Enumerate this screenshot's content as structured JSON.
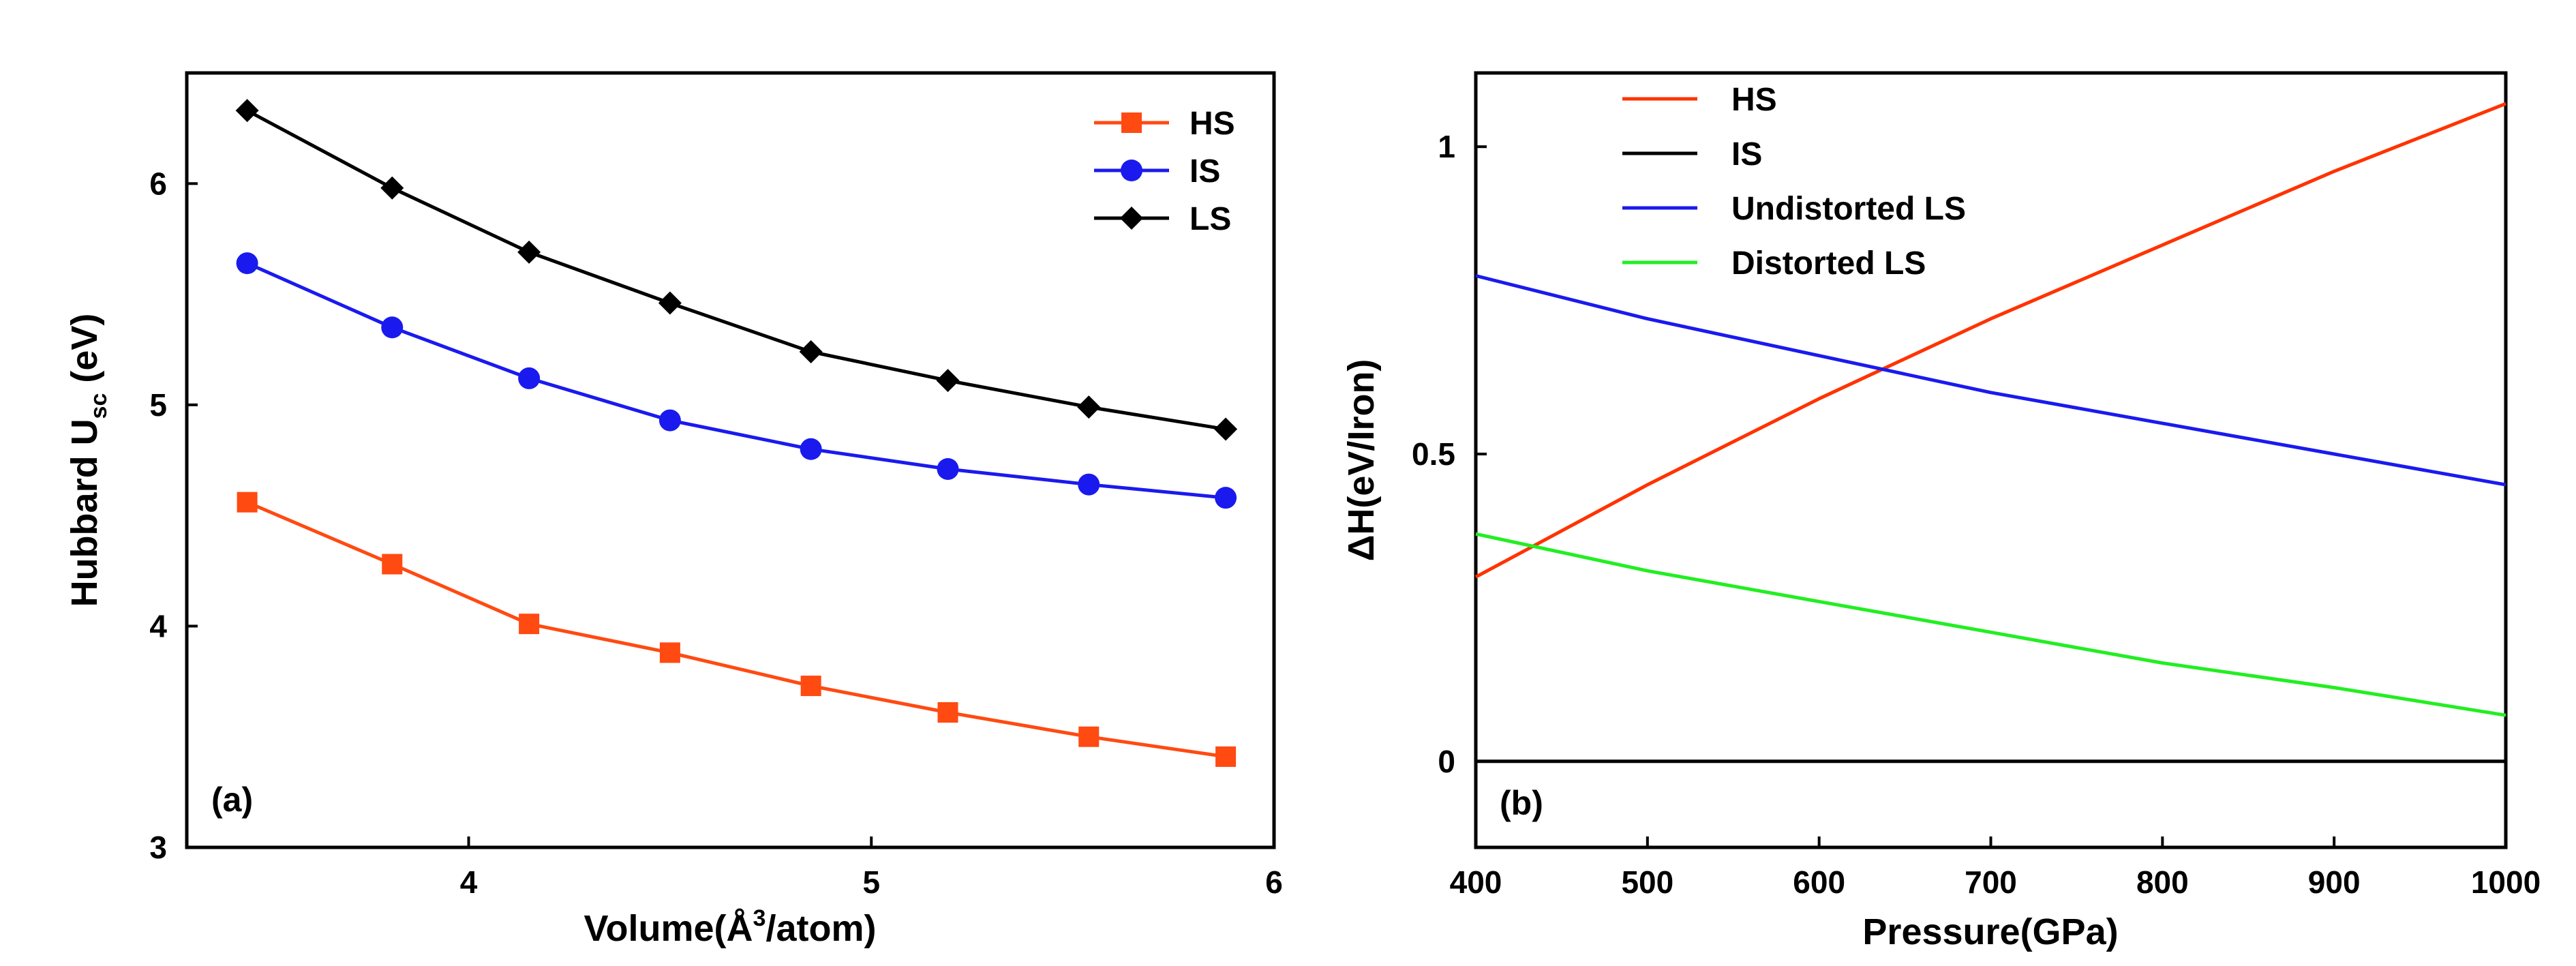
{
  "chart_data": [
    {
      "type": "line",
      "panel_label": "(a)",
      "xlabel_parts": [
        "Volume(Å",
        "3",
        "/atom)"
      ],
      "ylabel_parts": [
        "Hubbard U",
        "sc",
        " (eV)"
      ],
      "xlim": [
        3.3,
        6.0
      ],
      "ylim": [
        3,
        6.5
      ],
      "xticks": [
        4,
        5,
        6
      ],
      "yticks": [
        3,
        4,
        5,
        6
      ],
      "xtick_labels": [
        "4",
        "5",
        "6"
      ],
      "ytick_labels": [
        "3",
        "4",
        "5",
        "6"
      ],
      "legend_position": "top-right",
      "x": [
        3.45,
        3.81,
        4.15,
        4.5,
        4.85,
        5.19,
        5.54,
        5.88
      ],
      "series": [
        {
          "name": "HS",
          "color": "#ff4a12",
          "marker": "square",
          "values": [
            4.56,
            4.28,
            4.01,
            3.88,
            3.73,
            3.61,
            3.5,
            3.41
          ]
        },
        {
          "name": "IS",
          "color": "#1a1aee",
          "marker": "circle",
          "values": [
            5.64,
            5.35,
            5.12,
            4.93,
            4.8,
            4.71,
            4.64,
            4.58
          ]
        },
        {
          "name": "LS",
          "color": "#000000",
          "marker": "diamond",
          "values": [
            6.33,
            5.98,
            5.69,
            5.46,
            5.24,
            5.11,
            4.99,
            4.89
          ]
        }
      ]
    },
    {
      "type": "line",
      "panel_label": "(b)",
      "xlabel": "Pressure(GPa)",
      "ylabel": "ΔH(eV/Iron)",
      "xlim": [
        400,
        1000
      ],
      "ylim": [
        -0.14,
        1.12
      ],
      "xticks": [
        400,
        500,
        600,
        700,
        800,
        900,
        1000
      ],
      "yticks": [
        0,
        0.5,
        1
      ],
      "xtick_labels": [
        "400",
        "500",
        "600",
        "700",
        "800",
        "900",
        "1000"
      ],
      "ytick_labels": [
        "0",
        "0.5",
        "1"
      ],
      "legend_position": "top-left",
      "x": [
        400,
        500,
        600,
        700,
        800,
        900,
        1000
      ],
      "series": [
        {
          "name": "HS",
          "color": "#ff3300",
          "values": [
            0.3,
            0.45,
            0.59,
            0.72,
            0.84,
            0.96,
            1.07
          ]
        },
        {
          "name": "IS",
          "color": "#000000",
          "values": [
            0,
            0,
            0,
            0,
            0,
            0,
            0
          ]
        },
        {
          "name": "Undistorted LS",
          "color": "#1a1aee",
          "values": [
            0.79,
            0.72,
            0.66,
            0.6,
            0.55,
            0.5,
            0.45
          ]
        },
        {
          "name": "Distorted LS",
          "color": "#22ee22",
          "values": [
            0.37,
            0.31,
            0.26,
            0.21,
            0.16,
            0.12,
            0.075
          ]
        }
      ]
    }
  ]
}
